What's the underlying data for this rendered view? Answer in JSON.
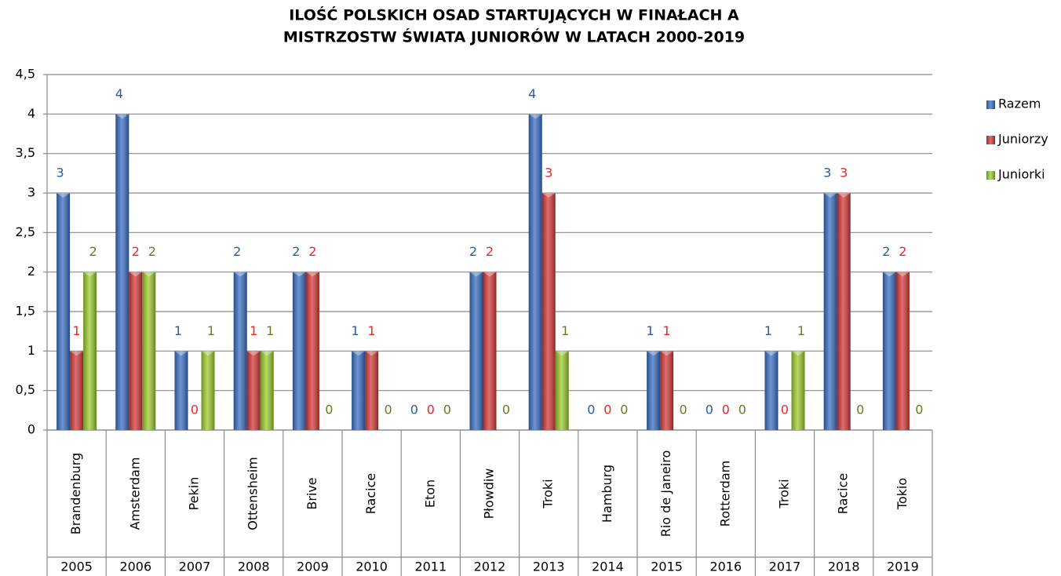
{
  "chart_data": {
    "type": "bar",
    "title": [
      "ILOŚĆ POLSKICH OSAD STARTUJĄCYCH W FINAŁACH A",
      "MISTRZOSTW ŚWIATA JUNIORÓW W LATACH 2000-2019"
    ],
    "categories": [
      "Brandenburg",
      "Amsterdam",
      "Pekin",
      "Ottensheim",
      "Brive",
      "Racice",
      "Eton",
      "Płowdiw",
      "Troki",
      "Hamburg",
      "Rio de Janeiro",
      "Rotterdam",
      "Troki",
      "Racice",
      "Tokio"
    ],
    "years": [
      "2005",
      "2006",
      "2007",
      "2008",
      "2009",
      "2010",
      "2011",
      "2012",
      "2013",
      "2014",
      "2015",
      "2016",
      "2017",
      "2018",
      "2019"
    ],
    "series": [
      {
        "name": "Razem",
        "color": "#3a6fc4",
        "label_color": "#2f5a9e",
        "values": [
          3,
          4,
          1,
          2,
          2,
          1,
          0,
          2,
          4,
          0,
          1,
          0,
          1,
          3,
          2
        ]
      },
      {
        "name": "Juniorzy",
        "color": "#d63a3a",
        "label_color": "#e8262b",
        "values": [
          1,
          2,
          0,
          1,
          2,
          1,
          0,
          2,
          3,
          0,
          1,
          0,
          0,
          3,
          2
        ]
      },
      {
        "name": "Juniorki",
        "color": "#9ccc2e",
        "label_color": "#6b7a2a",
        "values": [
          2,
          2,
          1,
          1,
          0,
          0,
          0,
          0,
          1,
          0,
          0,
          0,
          1,
          0,
          0
        ]
      }
    ],
    "ylim": [
      0,
      4.5
    ],
    "yticks": [
      0,
      {
        "value": 0.5,
        "label": "0,5"
      },
      1,
      {
        "value": 1.5,
        "label": "1,5"
      },
      2,
      {
        "value": 2.5,
        "label": "2,5"
      },
      3,
      {
        "value": 3.5,
        "label": "3,5"
      },
      4,
      {
        "value": 4.5,
        "label": "4,5"
      }
    ],
    "grid": true,
    "legend": "right"
  }
}
